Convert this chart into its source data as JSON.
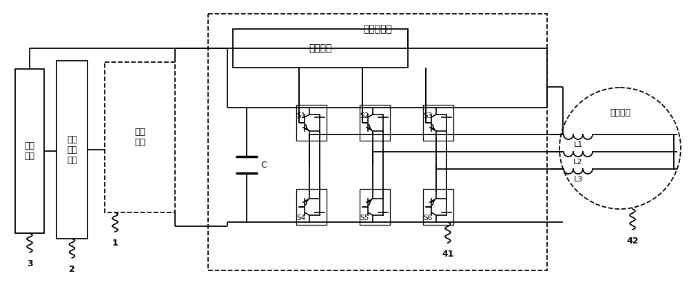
{
  "bg_color": "#ffffff",
  "line_color": "#000000",
  "figsize": [
    10.0,
    4.19
  ],
  "dpi": 100,
  "labels": {
    "control_system": "控制\n系统",
    "battery_mgmt": "电池\n管理\n系统",
    "power_battery": "动力\n电池",
    "motor_controller": "电机控制器",
    "control_module": "控制模块",
    "three_phase_motor": "三相电机",
    "C": "C",
    "S1": "S1",
    "S2": "S2",
    "S3": "S3",
    "S4": "S4",
    "S5": "S5",
    "S6": "S6",
    "L1": "L1",
    "L2": "L2",
    "L3": "L3",
    "num1": "1",
    "num2": "2",
    "num3": "3",
    "num41": "41",
    "num42": "42"
  }
}
